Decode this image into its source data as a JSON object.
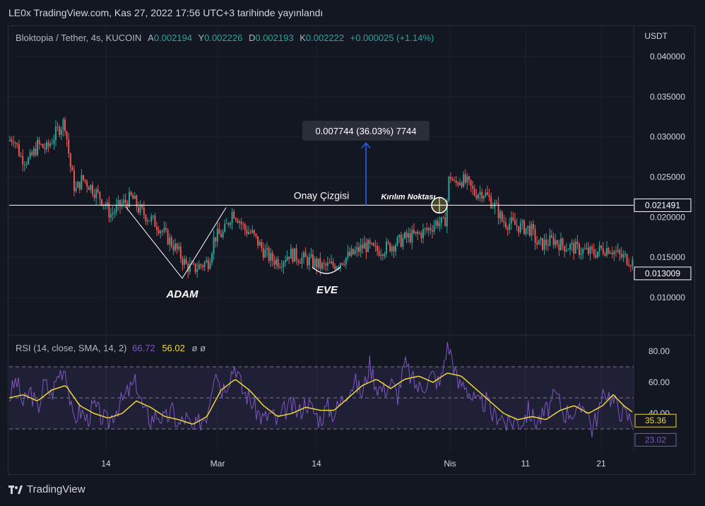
{
  "header": {
    "published": "LE0x TradingView.com, Kas 27, 2022 17:56 UTC+3 tarihinde yayınlandı"
  },
  "legend": {
    "symbol": "Bloktopia / Tether, 4s, KUCOIN",
    "open_label": "A",
    "open": "0.002194",
    "high_label": "Y",
    "high": "0.002226",
    "low_label": "D",
    "low": "0.002193",
    "close_label": "K",
    "close": "0.002222",
    "change": "+0.000025 (+1.14%)"
  },
  "rsi_legend": {
    "params": "RSI (14, close, SMA, 14, 2)",
    "rsi": "66.72",
    "ma": "56.02",
    "blank1": "ø",
    "blank2": "ø"
  },
  "footer": {
    "brand": "TradingView"
  },
  "colors": {
    "up": "#26a69a",
    "down": "#ef5350",
    "rsi": "#7e57c2",
    "rsi_ma": "#f0d737",
    "bg": "#131722",
    "grid": "#1e222d",
    "text": "#d1d4dc"
  },
  "chart_data": {
    "type": "candlestick",
    "currency": "USDT",
    "y_ticks": [
      "0.040000",
      "0.035000",
      "0.030000",
      "0.025000",
      "0.020000",
      "0.015000",
      "0.010000"
    ],
    "y_range": [
      0.0057,
      0.0407
    ],
    "x_ticks": [
      "14",
      "Mar",
      "14",
      "Nis",
      "11",
      "21"
    ],
    "price_path": [
      [
        0,
        0.0295
      ],
      [
        8,
        0.03
      ],
      [
        18,
        0.0275
      ],
      [
        30,
        0.027
      ],
      [
        42,
        0.029
      ],
      [
        55,
        0.0285
      ],
      [
        68,
        0.0305
      ],
      [
        80,
        0.032
      ],
      [
        88,
        0.0265
      ],
      [
        95,
        0.0232
      ],
      [
        105,
        0.0248
      ],
      [
        115,
        0.024
      ],
      [
        125,
        0.023
      ],
      [
        135,
        0.022
      ],
      [
        145,
        0.0203
      ],
      [
        155,
        0.0212
      ],
      [
        165,
        0.0218
      ],
      [
        175,
        0.0225
      ],
      [
        185,
        0.021
      ],
      [
        198,
        0.02
      ],
      [
        212,
        0.019
      ],
      [
        225,
        0.0175
      ],
      [
        240,
        0.0158
      ],
      [
        252,
        0.014
      ],
      [
        262,
        0.0135
      ],
      [
        272,
        0.014
      ],
      [
        284,
        0.0145
      ],
      [
        292,
        0.0175
      ],
      [
        305,
        0.018
      ],
      [
        318,
        0.0208
      ],
      [
        325,
        0.02
      ],
      [
        335,
        0.0185
      ],
      [
        345,
        0.018
      ],
      [
        360,
        0.016
      ],
      [
        372,
        0.0148
      ],
      [
        385,
        0.0145
      ],
      [
        398,
        0.0155
      ],
      [
        412,
        0.015
      ],
      [
        430,
        0.0145
      ],
      [
        445,
        0.0138
      ],
      [
        460,
        0.014
      ],
      [
        475,
        0.0148
      ],
      [
        490,
        0.0155
      ],
      [
        505,
        0.0165
      ],
      [
        520,
        0.0158
      ],
      [
        535,
        0.0162
      ],
      [
        550,
        0.0168
      ],
      [
        565,
        0.0175
      ],
      [
        580,
        0.0178
      ],
      [
        595,
        0.0185
      ],
      [
        608,
        0.0195
      ],
      [
        618,
        0.019
      ],
      [
        625,
        0.0255
      ],
      [
        632,
        0.024
      ],
      [
        640,
        0.0248
      ],
      [
        650,
        0.0242
      ],
      [
        660,
        0.023
      ],
      [
        672,
        0.0232
      ],
      [
        682,
        0.0222
      ],
      [
        692,
        0.021
      ],
      [
        700,
        0.0195
      ],
      [
        712,
        0.0192
      ],
      [
        725,
        0.0188
      ],
      [
        740,
        0.0185
      ],
      [
        750,
        0.0165
      ],
      [
        762,
        0.0168
      ],
      [
        772,
        0.0172
      ],
      [
        785,
        0.0165
      ],
      [
        800,
        0.0162
      ],
      [
        815,
        0.0158
      ],
      [
        828,
        0.0155
      ],
      [
        840,
        0.016
      ],
      [
        852,
        0.0162
      ],
      [
        865,
        0.0152
      ],
      [
        878,
        0.0148
      ],
      [
        890,
        0.014
      ],
      [
        897,
        0.0132
      ]
    ],
    "last_price": "0.013009",
    "line_price": "0.021491",
    "measure_value": 0.007744,
    "measure_label": "0.007744 (36.03%) 7744",
    "labels": {
      "onay": "Onay Çizgisi",
      "kirilim": "Kırılım Noktası",
      "adam": "ADAM",
      "eve": "EVE"
    },
    "rsi": {
      "y_ticks": [
        "80.00",
        "60.00",
        "40.00"
      ],
      "levels": [
        70,
        50,
        30
      ],
      "last_ma": "35.36",
      "last_rsi": "23.02",
      "path": [
        [
          0,
          50
        ],
        [
          10,
          62
        ],
        [
          20,
          45
        ],
        [
          30,
          55
        ],
        [
          40,
          42
        ],
        [
          50,
          60
        ],
        [
          60,
          52
        ],
        [
          70,
          66
        ],
        [
          80,
          70
        ],
        [
          90,
          35
        ],
        [
          100,
          42
        ],
        [
          110,
          36
        ],
        [
          120,
          45
        ],
        [
          130,
          38
        ],
        [
          140,
          34
        ],
        [
          150,
          42
        ],
        [
          160,
          48
        ],
        [
          170,
          55
        ],
        [
          180,
          60
        ],
        [
          190,
          42
        ],
        [
          200,
          36
        ],
        [
          210,
          40
        ],
        [
          220,
          35
        ],
        [
          230,
          42
        ],
        [
          240,
          32
        ],
        [
          250,
          38
        ],
        [
          260,
          28
        ],
        [
          270,
          35
        ],
        [
          280,
          40
        ],
        [
          292,
          72
        ],
        [
          300,
          55
        ],
        [
          310,
          62
        ],
        [
          320,
          72
        ],
        [
          330,
          55
        ],
        [
          340,
          50
        ],
        [
          350,
          42
        ],
        [
          360,
          36
        ],
        [
          370,
          40
        ],
        [
          380,
          34
        ],
        [
          390,
          42
        ],
        [
          400,
          45
        ],
        [
          410,
          40
        ],
        [
          420,
          48
        ],
        [
          430,
          42
        ],
        [
          440,
          36
        ],
        [
          450,
          44
        ],
        [
          460,
          40
        ],
        [
          470,
          48
        ],
        [
          480,
          56
        ],
        [
          490,
          60
        ],
        [
          500,
          52
        ],
        [
          510,
          72
        ],
        [
          520,
          58
        ],
        [
          530,
          55
        ],
        [
          540,
          60
        ],
        [
          550,
          52
        ],
        [
          560,
          72
        ],
        [
          570,
          62
        ],
        [
          580,
          56
        ],
        [
          590,
          60
        ],
        [
          600,
          65
        ],
        [
          610,
          58
        ],
        [
          620,
          85
        ],
        [
          628,
          75
        ],
        [
          635,
          58
        ],
        [
          645,
          60
        ],
        [
          655,
          50
        ],
        [
          665,
          45
        ],
        [
          675,
          48
        ],
        [
          685,
          38
        ],
        [
          695,
          40
        ],
        [
          705,
          32
        ],
        [
          715,
          36
        ],
        [
          725,
          34
        ],
        [
          735,
          42
        ],
        [
          745,
          35
        ],
        [
          755,
          38
        ],
        [
          765,
          45
        ],
        [
          775,
          52
        ],
        [
          785,
          40
        ],
        [
          795,
          42
        ],
        [
          805,
          38
        ],
        [
          815,
          48
        ],
        [
          825,
          30
        ],
        [
          835,
          42
        ],
        [
          845,
          55
        ],
        [
          855,
          48
        ],
        [
          865,
          42
        ],
        [
          875,
          38
        ],
        [
          885,
          35
        ],
        [
          895,
          23
        ]
      ],
      "ma_path": [
        [
          0,
          50
        ],
        [
          20,
          52
        ],
        [
          40,
          48
        ],
        [
          60,
          55
        ],
        [
          80,
          58
        ],
        [
          100,
          45
        ],
        [
          120,
          40
        ],
        [
          140,
          37
        ],
        [
          160,
          40
        ],
        [
          180,
          48
        ],
        [
          200,
          44
        ],
        [
          220,
          38
        ],
        [
          240,
          36
        ],
        [
          260,
          33
        ],
        [
          280,
          38
        ],
        [
          300,
          55
        ],
        [
          320,
          62
        ],
        [
          340,
          55
        ],
        [
          360,
          45
        ],
        [
          380,
          38
        ],
        [
          400,
          40
        ],
        [
          420,
          44
        ],
        [
          440,
          42
        ],
        [
          460,
          42
        ],
        [
          480,
          50
        ],
        [
          500,
          58
        ],
        [
          520,
          62
        ],
        [
          540,
          56
        ],
        [
          560,
          62
        ],
        [
          580,
          64
        ],
        [
          600,
          60
        ],
        [
          620,
          66
        ],
        [
          640,
          64
        ],
        [
          660,
          56
        ],
        [
          680,
          48
        ],
        [
          700,
          40
        ],
        [
          720,
          36
        ],
        [
          740,
          38
        ],
        [
          760,
          36
        ],
        [
          780,
          42
        ],
        [
          800,
          45
        ],
        [
          820,
          40
        ],
        [
          840,
          45
        ],
        [
          855,
          52
        ],
        [
          870,
          45
        ],
        [
          885,
          40
        ],
        [
          897,
          35
        ]
      ]
    }
  }
}
